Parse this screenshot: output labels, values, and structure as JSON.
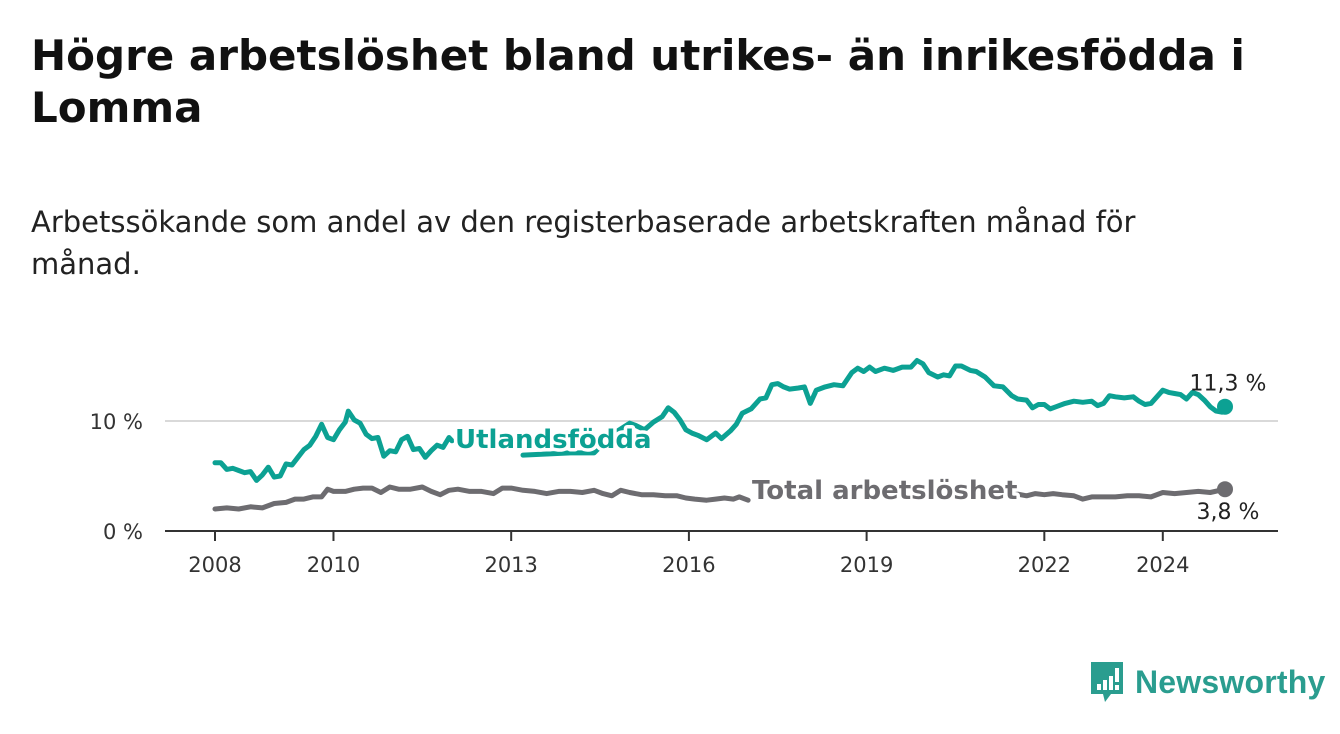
{
  "header": {
    "title": "Högre arbetslöshet bland utrikes- än inrikesfödda i Lomma",
    "subtitle": "Arbetssökande som andel av den registerbaserade arbetskraften månad för månad."
  },
  "colors": {
    "foreign_born": "#0ca193",
    "total": "#6d6c70",
    "axis": "#333333",
    "gridline": "#d9d9d9",
    "brand": "#2a9d8f"
  },
  "brand": {
    "name": "Newsworthy",
    "icon": "bar-chart-speech-bubble-icon"
  },
  "chart_data": {
    "type": "line",
    "title": "Högre arbetslöshet bland utrikes- än inrikesfödda i Lomma",
    "xlabel": "",
    "ylabel": "",
    "unit": "%",
    "xlim": [
      2007.7,
      2025.3
    ],
    "ylim": [
      0,
      15.5
    ],
    "x_ticks": [
      2008,
      2010,
      2013,
      2016,
      2019,
      2022,
      2024
    ],
    "x_tick_labels": [
      "2008",
      "2010",
      "2013",
      "2016",
      "2019",
      "2022",
      "2024"
    ],
    "y_ticks": [
      0,
      10
    ],
    "y_tick_labels": [
      "0 %",
      "10 %"
    ],
    "grid": true,
    "series": [
      {
        "name": "Utlandsfödda",
        "color": "#0ca193",
        "end_label": "11,3 %",
        "points": [
          [
            2008.0,
            6.2
          ],
          [
            2008.1,
            6.2
          ],
          [
            2008.2,
            5.6
          ],
          [
            2008.3,
            5.7
          ],
          [
            2008.4,
            5.5
          ],
          [
            2008.5,
            5.3
          ],
          [
            2008.6,
            5.4
          ],
          [
            2008.7,
            4.6
          ],
          [
            2008.8,
            5.1
          ],
          [
            2008.9,
            5.8
          ],
          [
            2009.0,
            4.9
          ],
          [
            2009.1,
            5.0
          ],
          [
            2009.2,
            6.1
          ],
          [
            2009.3,
            6.0
          ],
          [
            2009.4,
            6.7
          ],
          [
            2009.5,
            7.4
          ],
          [
            2009.6,
            7.8
          ],
          [
            2009.7,
            8.6
          ],
          [
            2009.8,
            9.7
          ],
          [
            2009.9,
            8.5
          ],
          [
            2010.0,
            8.3
          ],
          [
            2010.1,
            9.2
          ],
          [
            2010.2,
            9.9
          ],
          [
            2010.25,
            10.9
          ],
          [
            2010.35,
            10.1
          ],
          [
            2010.45,
            9.8
          ],
          [
            2010.55,
            8.8
          ],
          [
            2010.65,
            8.4
          ],
          [
            2010.75,
            8.5
          ],
          [
            2010.85,
            6.8
          ],
          [
            2010.95,
            7.3
          ],
          [
            2011.05,
            7.2
          ],
          [
            2011.15,
            8.3
          ],
          [
            2011.25,
            8.6
          ],
          [
            2011.35,
            7.4
          ],
          [
            2011.45,
            7.5
          ],
          [
            2011.55,
            6.7
          ],
          [
            2011.65,
            7.3
          ],
          [
            2011.75,
            7.8
          ],
          [
            2011.85,
            7.6
          ],
          [
            2011.95,
            8.5
          ],
          [
            2012.0,
            8.2
          ]
        ],
        "segment2": [
          [
            2013.2,
            6.9
          ],
          [
            2014.0,
            7.1
          ],
          [
            2014.4,
            7.1
          ],
          [
            2014.6,
            8.2
          ],
          [
            2014.8,
            9.1
          ],
          [
            2015.0,
            9.8
          ],
          [
            2015.1,
            9.6
          ],
          [
            2015.25,
            9.2
          ],
          [
            2015.4,
            9.9
          ],
          [
            2015.55,
            10.4
          ],
          [
            2015.65,
            11.2
          ],
          [
            2015.75,
            10.8
          ],
          [
            2015.85,
            10.1
          ],
          [
            2015.95,
            9.2
          ],
          [
            2016.05,
            8.9
          ],
          [
            2016.15,
            8.7
          ],
          [
            2016.3,
            8.3
          ],
          [
            2016.45,
            8.9
          ],
          [
            2016.55,
            8.4
          ],
          [
            2016.7,
            9.1
          ],
          [
            2016.8,
            9.7
          ],
          [
            2016.9,
            10.7
          ],
          [
            2017.05,
            11.1
          ],
          [
            2017.2,
            12.0
          ],
          [
            2017.3,
            12.1
          ],
          [
            2017.4,
            13.3
          ],
          [
            2017.5,
            13.4
          ],
          [
            2017.6,
            13.1
          ],
          [
            2017.7,
            12.9
          ],
          [
            2017.85,
            13.0
          ],
          [
            2017.95,
            13.1
          ],
          [
            2018.05,
            11.6
          ],
          [
            2018.15,
            12.8
          ],
          [
            2018.3,
            13.1
          ],
          [
            2018.45,
            13.3
          ],
          [
            2018.6,
            13.2
          ],
          [
            2018.75,
            14.4
          ],
          [
            2018.85,
            14.8
          ],
          [
            2018.95,
            14.5
          ],
          [
            2019.05,
            14.9
          ],
          [
            2019.15,
            14.5
          ],
          [
            2019.3,
            14.8
          ],
          [
            2019.45,
            14.6
          ],
          [
            2019.6,
            14.9
          ],
          [
            2019.75,
            14.9
          ],
          [
            2019.85,
            15.5
          ],
          [
            2019.95,
            15.2
          ],
          [
            2020.05,
            14.4
          ],
          [
            2020.2,
            14.0
          ],
          [
            2020.3,
            14.2
          ],
          [
            2020.4,
            14.1
          ],
          [
            2020.5,
            15.0
          ],
          [
            2020.6,
            15.0
          ],
          [
            2020.75,
            14.6
          ],
          [
            2020.85,
            14.5
          ],
          [
            2021.0,
            14.0
          ],
          [
            2021.15,
            13.2
          ],
          [
            2021.3,
            13.1
          ],
          [
            2021.45,
            12.3
          ],
          [
            2021.55,
            12.0
          ],
          [
            2021.7,
            11.9
          ],
          [
            2021.8,
            11.2
          ],
          [
            2021.9,
            11.5
          ],
          [
            2022.0,
            11.5
          ],
          [
            2022.1,
            11.1
          ],
          [
            2022.2,
            11.3
          ],
          [
            2022.35,
            11.6
          ],
          [
            2022.5,
            11.8
          ],
          [
            2022.65,
            11.7
          ],
          [
            2022.8,
            11.8
          ],
          [
            2022.9,
            11.4
          ],
          [
            2023.0,
            11.6
          ],
          [
            2023.1,
            12.3
          ],
          [
            2023.2,
            12.2
          ],
          [
            2023.35,
            12.1
          ],
          [
            2023.5,
            12.2
          ],
          [
            2023.6,
            11.8
          ],
          [
            2023.7,
            11.5
          ],
          [
            2023.8,
            11.6
          ],
          [
            2023.9,
            12.2
          ],
          [
            2024.0,
            12.8
          ],
          [
            2024.1,
            12.6
          ],
          [
            2024.2,
            12.5
          ],
          [
            2024.3,
            12.4
          ],
          [
            2024.4,
            12.0
          ],
          [
            2024.5,
            12.6
          ],
          [
            2024.6,
            12.4
          ],
          [
            2024.7,
            11.9
          ],
          [
            2024.8,
            11.3
          ],
          [
            2024.9,
            10.9
          ],
          [
            2025.0,
            10.8
          ],
          [
            2025.05,
            11.3
          ]
        ]
      },
      {
        "name": "Total arbetslöshet",
        "color": "#6d6c70",
        "end_label": "3,8 %",
        "points": [
          [
            2008.0,
            2.0
          ],
          [
            2008.2,
            2.1
          ],
          [
            2008.4,
            2.0
          ],
          [
            2008.6,
            2.2
          ],
          [
            2008.8,
            2.1
          ],
          [
            2009.0,
            2.5
          ],
          [
            2009.2,
            2.6
          ],
          [
            2009.35,
            2.9
          ],
          [
            2009.5,
            2.9
          ],
          [
            2009.65,
            3.1
          ],
          [
            2009.8,
            3.1
          ],
          [
            2009.9,
            3.8
          ],
          [
            2010.0,
            3.6
          ],
          [
            2010.2,
            3.6
          ],
          [
            2010.35,
            3.8
          ],
          [
            2010.5,
            3.9
          ],
          [
            2010.65,
            3.9
          ],
          [
            2010.8,
            3.5
          ],
          [
            2010.95,
            4.0
          ],
          [
            2011.1,
            3.8
          ],
          [
            2011.3,
            3.8
          ],
          [
            2011.5,
            4.0
          ],
          [
            2011.65,
            3.6
          ],
          [
            2011.8,
            3.3
          ],
          [
            2011.95,
            3.7
          ],
          [
            2012.1,
            3.8
          ],
          [
            2012.3,
            3.6
          ],
          [
            2012.5,
            3.6
          ],
          [
            2012.7,
            3.4
          ],
          [
            2012.85,
            3.9
          ],
          [
            2013.0,
            3.9
          ],
          [
            2013.2,
            3.7
          ],
          [
            2013.4,
            3.6
          ],
          [
            2013.6,
            3.4
          ],
          [
            2013.8,
            3.6
          ],
          [
            2014.0,
            3.6
          ],
          [
            2014.2,
            3.5
          ],
          [
            2014.4,
            3.7
          ],
          [
            2014.55,
            3.4
          ],
          [
            2014.7,
            3.2
          ],
          [
            2014.85,
            3.7
          ],
          [
            2015.0,
            3.5
          ],
          [
            2015.2,
            3.3
          ],
          [
            2015.4,
            3.3
          ],
          [
            2015.6,
            3.2
          ],
          [
            2015.8,
            3.2
          ],
          [
            2015.95,
            3.0
          ],
          [
            2016.1,
            2.9
          ],
          [
            2016.3,
            2.8
          ],
          [
            2016.45,
            2.9
          ],
          [
            2016.6,
            3.0
          ],
          [
            2016.75,
            2.9
          ],
          [
            2016.85,
            3.1
          ],
          [
            2017.0,
            2.8
          ]
        ],
        "segment2": [
          [
            2021.05,
            3.6
          ],
          [
            2021.2,
            3.8
          ],
          [
            2021.35,
            3.4
          ],
          [
            2021.5,
            3.4
          ],
          [
            2021.7,
            3.2
          ],
          [
            2021.85,
            3.4
          ],
          [
            2022.0,
            3.3
          ],
          [
            2022.15,
            3.4
          ],
          [
            2022.3,
            3.3
          ],
          [
            2022.5,
            3.2
          ],
          [
            2022.65,
            2.9
          ],
          [
            2022.8,
            3.1
          ],
          [
            2023.0,
            3.1
          ],
          [
            2023.2,
            3.1
          ],
          [
            2023.4,
            3.2
          ],
          [
            2023.6,
            3.2
          ],
          [
            2023.8,
            3.1
          ],
          [
            2024.0,
            3.5
          ],
          [
            2024.2,
            3.4
          ],
          [
            2024.4,
            3.5
          ],
          [
            2024.6,
            3.6
          ],
          [
            2024.8,
            3.5
          ],
          [
            2025.05,
            3.8
          ]
        ]
      }
    ],
    "annotations": [
      {
        "text": "Utlandsfödda",
        "series": "Utlandsfödda",
        "anchor_x": 2012.7,
        "anchor_y": 8.0
      },
      {
        "text": "Total arbetslöshet",
        "series": "Total arbetslöshet",
        "anchor_x": 2019.0,
        "anchor_y": 3.4
      }
    ]
  }
}
